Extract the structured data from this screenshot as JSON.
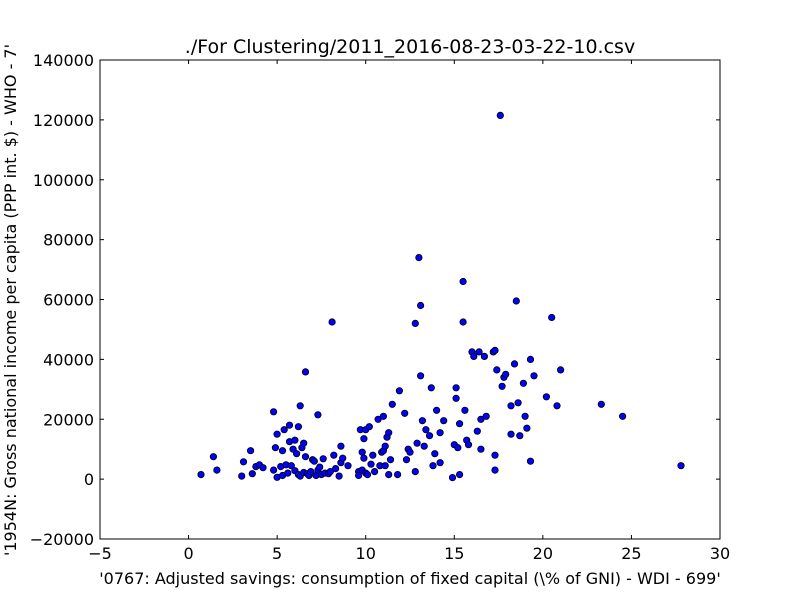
{
  "chart_data": {
    "type": "scatter",
    "title": "./For Clustering/2011_2016-08-23-03-22-10.csv",
    "xlabel": "'0767: Adjusted savings: consumption of fixed capital  (\\% of GNI) - WDI - 699'",
    "ylabel": "'1954N: Gross national income per capita (PPP int. $) - WHO - 7'",
    "xlim": [
      -5,
      30
    ],
    "ylim": [
      -20000,
      140000
    ],
    "xticks": [
      -5,
      0,
      5,
      10,
      15,
      20,
      25,
      30
    ],
    "yticks": [
      -20000,
      0,
      20000,
      40000,
      60000,
      80000,
      100000,
      120000,
      140000
    ],
    "grid": false,
    "marker_color": "#0000ff",
    "marker_edge": "#000000",
    "points": [
      [
        0.7,
        1500
      ],
      [
        1.4,
        7500
      ],
      [
        1.6,
        3000
      ],
      [
        3.0,
        1000
      ],
      [
        3.1,
        5800
      ],
      [
        3.5,
        9500
      ],
      [
        3.6,
        1800
      ],
      [
        3.8,
        4200
      ],
      [
        4.0,
        4800
      ],
      [
        4.2,
        3800
      ],
      [
        4.8,
        22500
      ],
      [
        4.8,
        3000
      ],
      [
        4.9,
        10500
      ],
      [
        5.0,
        15000
      ],
      [
        5.0,
        600
      ],
      [
        5.2,
        4200
      ],
      [
        5.3,
        9500
      ],
      [
        5.3,
        1200
      ],
      [
        5.4,
        16500
      ],
      [
        5.5,
        4800
      ],
      [
        5.6,
        2000
      ],
      [
        5.7,
        12500
      ],
      [
        5.7,
        18000
      ],
      [
        5.8,
        4500
      ],
      [
        5.9,
        10000
      ],
      [
        6.0,
        13000
      ],
      [
        6.0,
        2800
      ],
      [
        6.1,
        8500
      ],
      [
        6.2,
        17500
      ],
      [
        6.2,
        1500
      ],
      [
        6.3,
        24500
      ],
      [
        6.3,
        1000
      ],
      [
        6.4,
        10500
      ],
      [
        6.5,
        12000
      ],
      [
        6.5,
        2200
      ],
      [
        6.6,
        35800
      ],
      [
        6.6,
        7500
      ],
      [
        6.7,
        1800
      ],
      [
        6.8,
        1200
      ],
      [
        6.9,
        2500
      ],
      [
        7.0,
        6500
      ],
      [
        7.1,
        6000
      ],
      [
        7.2,
        1200
      ],
      [
        7.3,
        21500
      ],
      [
        7.3,
        3000
      ],
      [
        7.4,
        4000
      ],
      [
        7.5,
        1500
      ],
      [
        7.6,
        6800
      ],
      [
        7.7,
        2000
      ],
      [
        7.9,
        1800
      ],
      [
        8.0,
        2500
      ],
      [
        8.1,
        52500
      ],
      [
        8.2,
        8000
      ],
      [
        8.3,
        3500
      ],
      [
        8.5,
        1000
      ],
      [
        8.6,
        11000
      ],
      [
        8.6,
        5500
      ],
      [
        8.7,
        7000
      ],
      [
        9.0,
        4500
      ],
      [
        9.6,
        2500
      ],
      [
        9.6,
        1200
      ],
      [
        9.7,
        16500
      ],
      [
        9.8,
        9000
      ],
      [
        9.8,
        3000
      ],
      [
        9.9,
        13500
      ],
      [
        9.9,
        7000
      ],
      [
        10.0,
        16500
      ],
      [
        10.0,
        2000
      ],
      [
        10.1,
        1500
      ],
      [
        10.2,
        17500
      ],
      [
        10.3,
        5000
      ],
      [
        10.4,
        8000
      ],
      [
        10.5,
        2500
      ],
      [
        10.7,
        20000
      ],
      [
        10.8,
        4500
      ],
      [
        10.9,
        9000
      ],
      [
        11.0,
        21000
      ],
      [
        11.0,
        9500
      ],
      [
        11.1,
        11000
      ],
      [
        11.1,
        4500
      ],
      [
        11.2,
        14000
      ],
      [
        11.3,
        15500
      ],
      [
        11.3,
        1500
      ],
      [
        11.4,
        6500
      ],
      [
        11.5,
        25000
      ],
      [
        11.8,
        1500
      ],
      [
        11.9,
        29500
      ],
      [
        12.2,
        22000
      ],
      [
        12.3,
        6500
      ],
      [
        12.4,
        10000
      ],
      [
        12.5,
        9000
      ],
      [
        12.8,
        2500
      ],
      [
        12.8,
        52000
      ],
      [
        12.9,
        12000
      ],
      [
        13.0,
        74000
      ],
      [
        13.1,
        58000
      ],
      [
        13.1,
        34500
      ],
      [
        13.2,
        19500
      ],
      [
        13.3,
        11000
      ],
      [
        13.4,
        16500
      ],
      [
        13.6,
        14500
      ],
      [
        13.7,
        30500
      ],
      [
        13.8,
        4500
      ],
      [
        13.9,
        8500
      ],
      [
        14.0,
        23000
      ],
      [
        14.2,
        15500
      ],
      [
        14.2,
        5500
      ],
      [
        14.4,
        19500
      ],
      [
        14.9,
        500
      ],
      [
        15.0,
        11500
      ],
      [
        15.1,
        30500
      ],
      [
        15.1,
        27000
      ],
      [
        15.2,
        10500
      ],
      [
        15.3,
        1500
      ],
      [
        15.3,
        18500
      ],
      [
        15.5,
        52500
      ],
      [
        15.5,
        66000
      ],
      [
        15.6,
        23000
      ],
      [
        15.7,
        13000
      ],
      [
        15.8,
        11500
      ],
      [
        16.0,
        42500
      ],
      [
        16.1,
        41000
      ],
      [
        16.3,
        16000
      ],
      [
        16.4,
        42500
      ],
      [
        16.5,
        10000
      ],
      [
        16.5,
        20000
      ],
      [
        16.7,
        41000
      ],
      [
        16.8,
        21000
      ],
      [
        17.2,
        42500
      ],
      [
        17.3,
        43000
      ],
      [
        17.3,
        3000
      ],
      [
        17.3,
        8000
      ],
      [
        17.4,
        36500
      ],
      [
        17.6,
        121500
      ],
      [
        17.7,
        31000
      ],
      [
        17.8,
        34000
      ],
      [
        17.9,
        35000
      ],
      [
        18.2,
        15000
      ],
      [
        18.2,
        24500
      ],
      [
        18.4,
        38500
      ],
      [
        18.5,
        59500
      ],
      [
        18.6,
        25500
      ],
      [
        18.7,
        14500
      ],
      [
        18.9,
        32000
      ],
      [
        19.0,
        21000
      ],
      [
        19.1,
        17000
      ],
      [
        19.3,
        40000
      ],
      [
        19.3,
        6000
      ],
      [
        19.5,
        34500
      ],
      [
        20.2,
        27500
      ],
      [
        20.5,
        54000
      ],
      [
        20.8,
        24500
      ],
      [
        21.0,
        36500
      ],
      [
        23.3,
        25000
      ],
      [
        24.5,
        21000
      ],
      [
        27.8,
        4500
      ]
    ]
  }
}
